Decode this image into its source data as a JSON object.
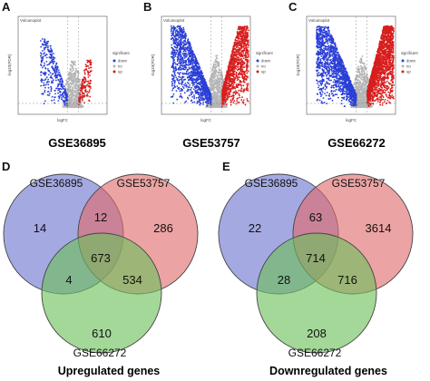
{
  "panel_letters": [
    "A",
    "B",
    "C",
    "D",
    "E"
  ],
  "chart_data": [
    {
      "type": "scatter",
      "panel": "A",
      "title": "GSE36895",
      "plot_title": "Volcanoplot",
      "xlabel": "logFC",
      "ylabel": "-log10(FDR)",
      "legend_title": "significant",
      "legend": [
        "down",
        "no",
        "up"
      ],
      "legend_placement": "right",
      "colors": {
        "down": "#2a3fd6",
        "no": "#b5b5b5",
        "up": "#d81e1e"
      },
      "density": {
        "down": 360,
        "no": 700,
        "up": 160
      }
    },
    {
      "type": "scatter",
      "panel": "B",
      "title": "GSE53757",
      "plot_title": "Volcanoplot",
      "xlabel": "logFC",
      "ylabel": "-log10(FDR)",
      "legend_title": "significant",
      "legend": [
        "down",
        "no",
        "up"
      ],
      "legend_placement": "right",
      "colors": {
        "down": "#2a3fd6",
        "no": "#b5b5b5",
        "up": "#d81e1e"
      },
      "density": {
        "down": 1300,
        "no": 900,
        "up": 1200
      }
    },
    {
      "type": "scatter",
      "panel": "C",
      "title": "GSE66272",
      "plot_title": "Volcanoplot",
      "xlabel": "logFC",
      "ylabel": "-log10(FDR)",
      "legend_title": "significant",
      "legend": [
        "down",
        "no",
        "up"
      ],
      "legend_placement": "right",
      "colors": {
        "down": "#2a3fd6",
        "no": "#b5b5b5",
        "up": "#d81e1e"
      },
      "density": {
        "down": 1500,
        "no": 900,
        "up": 2000
      }
    },
    {
      "type": "venn",
      "panel": "D",
      "title": "Upregulated genes",
      "sets": [
        "GSE36895",
        "GSE53757",
        "GSE66272"
      ],
      "set_colors": [
        "#6d74d0",
        "#e06b6b",
        "#6cc05a"
      ],
      "regions": {
        "GSE36895_only": 14,
        "GSE53757_only": 286,
        "GSE66272_only": 610,
        "GSE36895_GSE53757": 12,
        "GSE36895_GSE66272": 4,
        "GSE53757_GSE66272": 534,
        "all_three": 673
      }
    },
    {
      "type": "venn",
      "panel": "E",
      "title": "Downregulated genes",
      "sets": [
        "GSE36895",
        "GSE53757",
        "GSE66272"
      ],
      "set_colors": [
        "#6d74d0",
        "#e06b6b",
        "#6cc05a"
      ],
      "regions": {
        "GSE36895_only": 22,
        "GSE53757_only": 3614,
        "GSE66272_only": 208,
        "GSE36895_GSE53757": 63,
        "GSE36895_GSE66272": 28,
        "GSE53757_GSE66272": 716,
        "all_three": 714
      }
    }
  ]
}
